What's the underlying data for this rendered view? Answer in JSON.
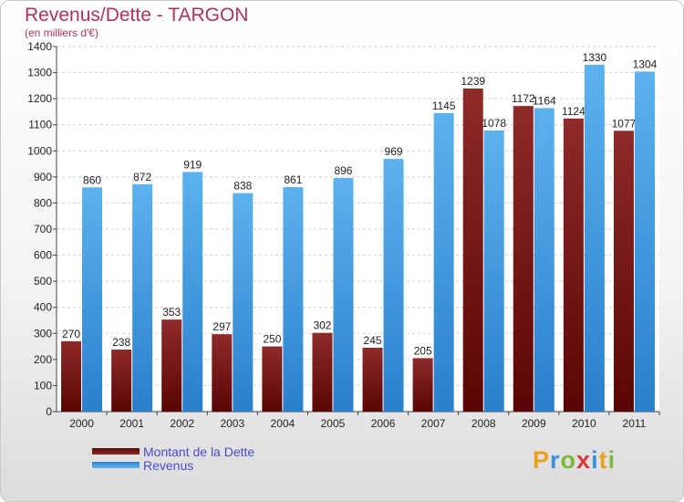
{
  "header": {
    "title": "Revenus/Dette - TARGON",
    "subtitle": "(en milliers d'€)"
  },
  "logo": {
    "letters": [
      "P",
      "r",
      "o",
      "x",
      "i",
      "t",
      "i"
    ],
    "colors": [
      "#e8a020",
      "#3a8fd8",
      "#7cb83a",
      "#d83a3a",
      "#3a8fd8",
      "#e8a020",
      "#7cb83a"
    ]
  },
  "chart_data": {
    "type": "bar",
    "categories": [
      "2000",
      "2001",
      "2002",
      "2003",
      "2004",
      "2005",
      "2006",
      "2007",
      "2008",
      "2009",
      "2010",
      "2011"
    ],
    "series": [
      {
        "name": "Montant de la Dette",
        "color": "#7a1e1e",
        "values": [
          270,
          238,
          353,
          297,
          250,
          302,
          245,
          205,
          1239,
          1172,
          1124,
          1077
        ]
      },
      {
        "name": "Revenus",
        "color": "#4aa3e4",
        "values": [
          860,
          872,
          919,
          838,
          861,
          896,
          969,
          1145,
          1078,
          1164,
          1330,
          1304
        ]
      }
    ],
    "ylim": [
      0,
      1400
    ],
    "yticks": [
      "0",
      "100",
      "200",
      "300",
      "400",
      "500",
      "600",
      "700",
      "800",
      "900",
      "1000",
      "1100",
      "1200",
      "1300",
      "1400"
    ],
    "grid": true,
    "legend": "bottom-left"
  }
}
